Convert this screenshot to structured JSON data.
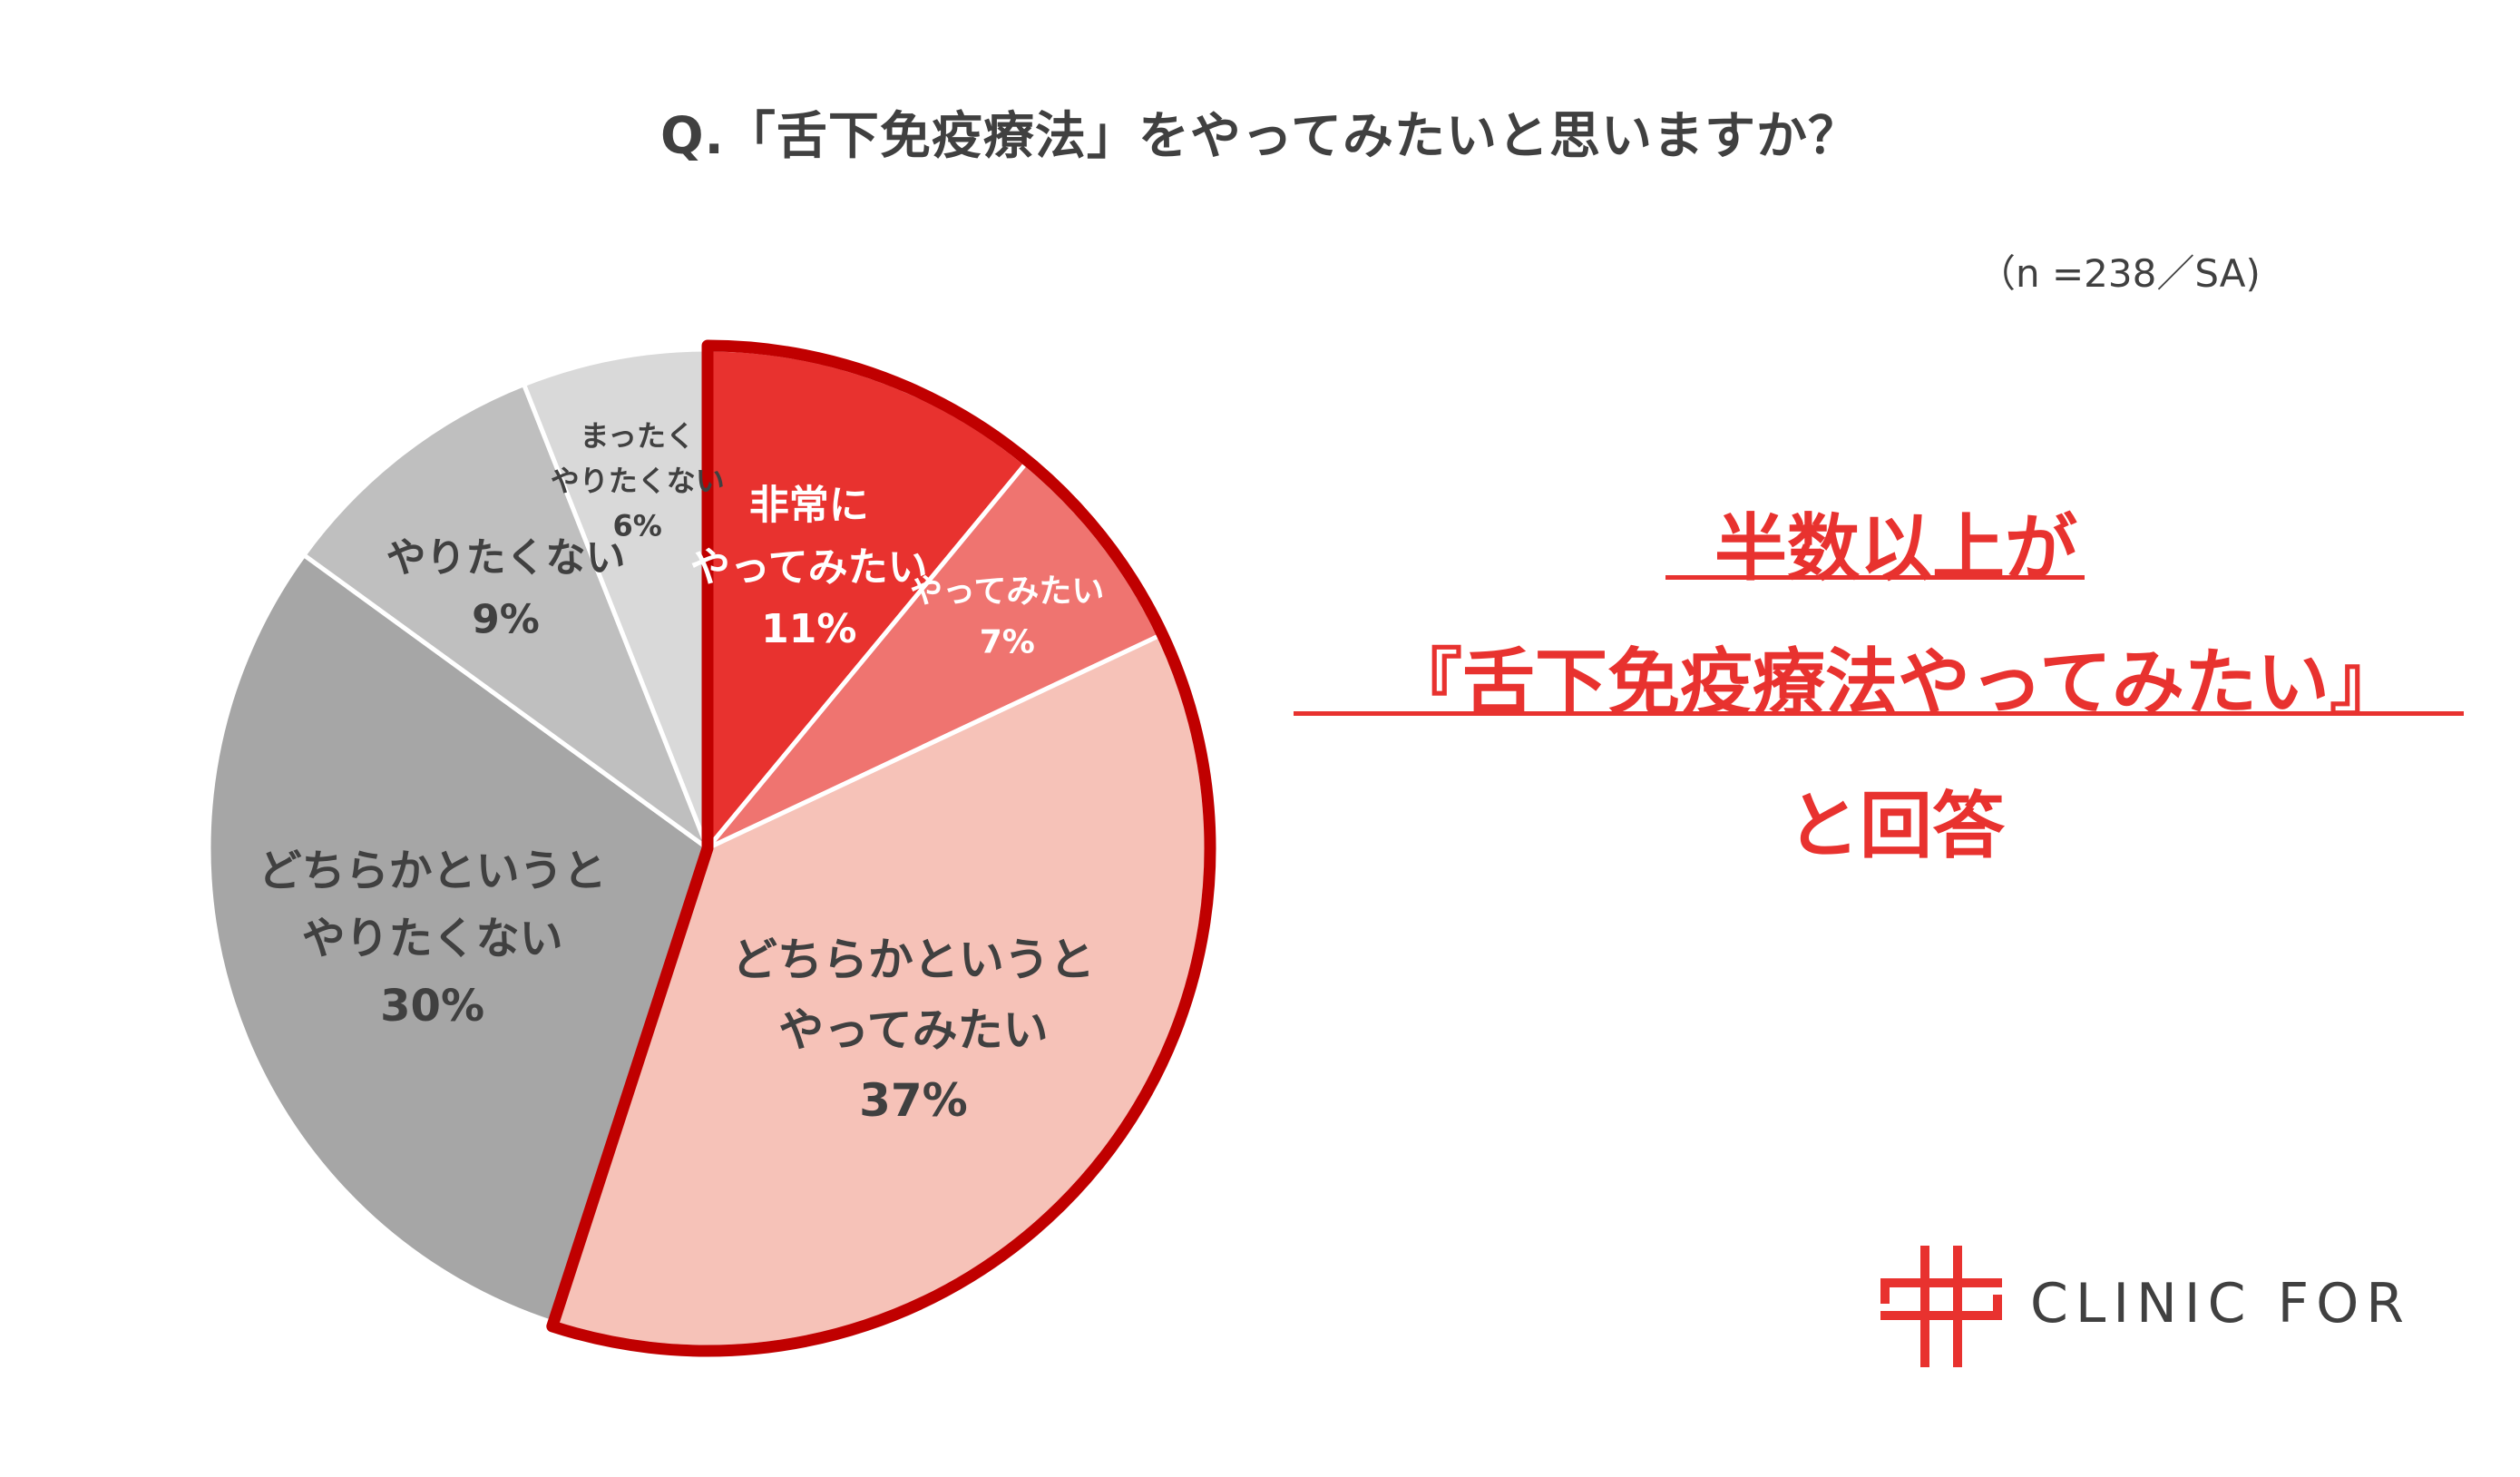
{
  "chart_data": {
    "type": "pie",
    "title": "Q.「舌下免疫療法」をやってみたいと思いますか？",
    "subtitle": "（n =238／SA)",
    "slices": [
      {
        "lines": [
          "非常に",
          "やってみたい"
        ],
        "value": 11,
        "label": "11%",
        "color": "#e8322f",
        "text_color": "#ffffff"
      },
      {
        "lines": [
          "やってみたい"
        ],
        "value": 7,
        "label": "7%",
        "color": "#ef7470",
        "text_color": "#ffffff"
      },
      {
        "lines": [
          "どちらかというと",
          "やってみたい"
        ],
        "value": 37,
        "label": "37%",
        "color": "#f6c2b8",
        "text_color": "#404040"
      },
      {
        "lines": [
          "どちらかというと",
          "やりたくない"
        ],
        "value": 30,
        "label": "30%",
        "color": "#a6a6a6",
        "text_color": "#404040"
      },
      {
        "lines": [
          "やりたくない"
        ],
        "value": 9,
        "label": "9%",
        "color": "#bfbfbf",
        "text_color": "#404040"
      },
      {
        "lines": [
          "まったく",
          "やりたくない"
        ],
        "value": 6,
        "label": "6%",
        "color": "#d9d9d9",
        "text_color": "#404040"
      }
    ],
    "highlight_group": [
      "非常にやってみたい",
      "やってみたい",
      "どちらかというとやってみたい"
    ],
    "highlight_color": "#c00000"
  },
  "callout": {
    "line1": "半数以上が",
    "line2": "『舌下免疫療法やってみたい』",
    "line3": "と回答",
    "color": "#e8322f"
  },
  "logo": {
    "text": "CLINIC FOR",
    "icon": "clinic-for-cross-logo",
    "color": "#e8322f"
  }
}
